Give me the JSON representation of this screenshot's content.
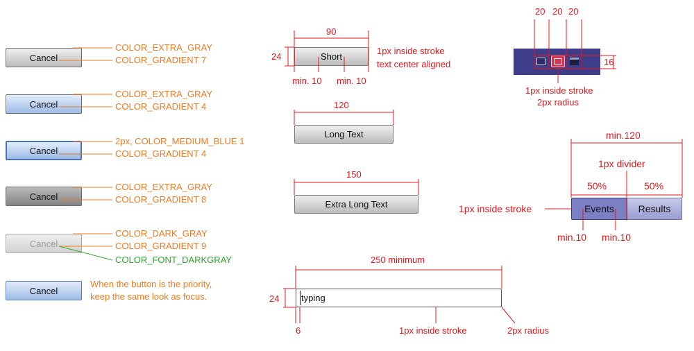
{
  "buttons": {
    "cancel_label": "Cancel",
    "short_label": "Short",
    "long_label": "Long Text",
    "extra_long_label": "Extra Long Text"
  },
  "states": [
    {
      "line1": "COLOR_EXTRA_GRAY",
      "line2": "COLOR_GRADIENT 7"
    },
    {
      "line1": "COLOR_EXTRA_GRAY",
      "line2": "COLOR_GRADIENT 4"
    },
    {
      "line1": "2px, COLOR_MEDIUM_BLUE 1",
      "line2": "COLOR_GRADIENT 4"
    },
    {
      "line1": "COLOR_EXTRA_GRAY",
      "line2": "COLOR_GRADIENT 8"
    },
    {
      "line1": "COLOR_DARK_GRAY",
      "line2": "COLOR_GRADIENT 9",
      "line3": "COLOR_FONT_DARKGRAY"
    },
    {
      "line1": "When the button is the priority,",
      "line2": "keep the same look as focus."
    }
  ],
  "dims": {
    "short_width": "90",
    "short_height": "24",
    "short_min_left": "min. 10",
    "short_min_right": "min. 10",
    "short_note1": "1px inside stroke",
    "short_note2": "text center aligned",
    "long_width": "120",
    "extra_long_width": "150"
  },
  "icon_group": {
    "w1": "20",
    "w2": "20",
    "w3": "20",
    "height": "16",
    "note1": "1px inside stroke",
    "note2": "2px radius"
  },
  "segmented": {
    "min_width": "min.120",
    "divider_note": "1px divider",
    "left_pct": "50%",
    "right_pct": "50%",
    "stroke_note": "1px inside stroke",
    "left_label": "Events",
    "right_label": "Results",
    "min_left": "min.10",
    "min_right": "min.10"
  },
  "input": {
    "width_label": "250 minimum",
    "height_label": "24",
    "padding_label": "6",
    "value": "typing",
    "stroke_note": "1px inside stroke",
    "radius_note": "2px radius"
  },
  "colors": {
    "annotation_orange": "#ee7a1f",
    "annotation_red": "#e0181b",
    "annotation_green": "#2fa62f",
    "focus_blue": "#4a72b8",
    "icon_bar": "#3d3d8a",
    "segment_fill": "#7b7fc4"
  }
}
